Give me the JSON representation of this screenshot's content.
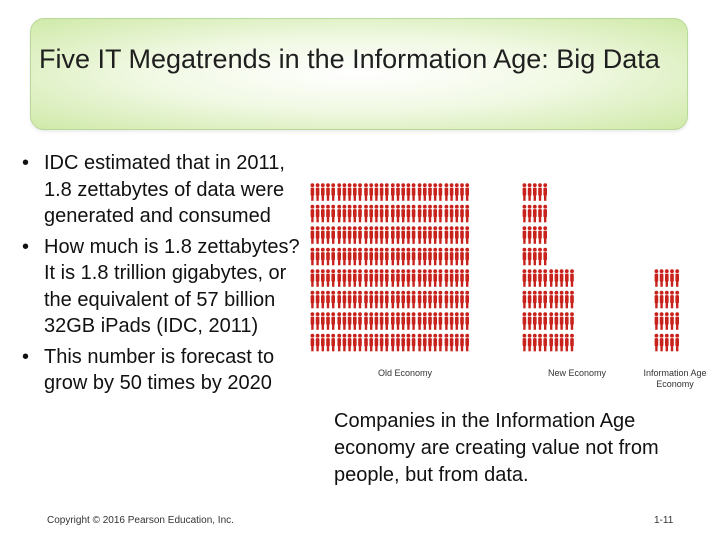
{
  "slide": {
    "title": "Five IT Megatrends in the Information Age: Big Data",
    "bullets": [
      "IDC estimated that in 2011, 1.8 zettabytes of data were generated and consumed",
      "How much is 1.8 zettabytes? It is 1.8 trillion gigabytes, or the equivalent of 57 billion 32GB iPads (IDC, 2011)",
      "This number is forecast to grow by 50 times by 2020"
    ],
    "bullet_symbol": "•",
    "caption": "Companies in the Information Age economy are creating value not from people, but from data.",
    "copyright": "Copyright © 2016 Pearson Education, Inc.",
    "slide_number": "1-11"
  },
  "figure": {
    "labels": {
      "old": "Old Economy",
      "new": "New Economy",
      "info": "Information Age Economy"
    },
    "groups": [
      {
        "name": "old-economy",
        "groups_across": 6,
        "rows": 8
      },
      {
        "name": "new-economy",
        "groups_across": 2,
        "rows": 8,
        "partial_group_rows": 4
      },
      {
        "name": "information-age-economy",
        "groups_across": 1,
        "rows": 4
      }
    ],
    "figure_color": "#c8221c"
  }
}
